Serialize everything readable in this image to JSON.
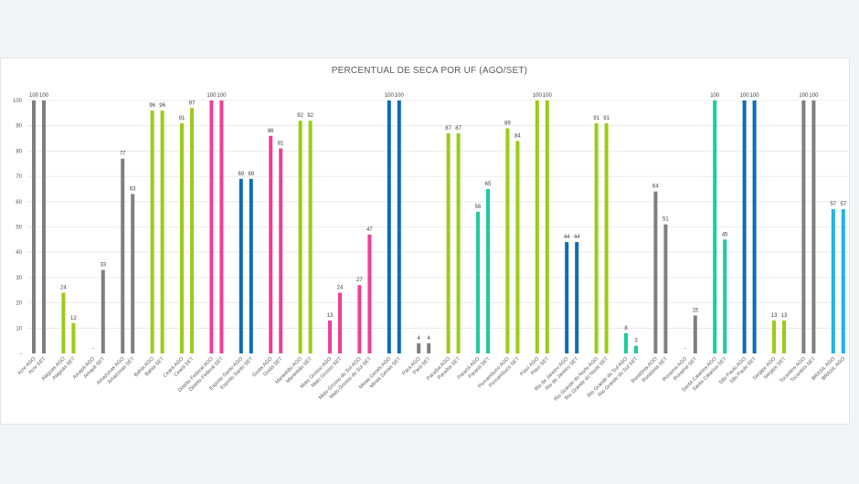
{
  "chart_data": {
    "type": "bar",
    "title": "PERCENTUAL DE SECA POR UF (AGO/SET)",
    "xlabel": "",
    "ylabel": "",
    "ylim": [
      0,
      100
    ],
    "yticks": [
      "-",
      "10",
      "20",
      "30",
      "40",
      "50",
      "60",
      "70",
      "80",
      "90",
      "100"
    ],
    "grid": true,
    "colors": {
      "gray": "#7f7f7f",
      "green": "#9ccb19",
      "pink": "#ee3f95",
      "blue": "#0f6cb6",
      "teal": "#1fcc9c",
      "lightblue": "#1fb3ea"
    },
    "groups": [
      {
        "color": "gray",
        "bars": [
          {
            "label": "Acre AGO",
            "value": 100
          },
          {
            "label": "Acre SET",
            "value": 100
          }
        ]
      },
      {
        "color": "green",
        "bars": [
          {
            "label": "Alagoas AGO",
            "value": 24
          },
          {
            "label": "Alagoas SET",
            "value": 12
          }
        ]
      },
      {
        "color": "gray",
        "bars": [
          {
            "label": "Amapá AGO",
            "value": 0,
            "text": "-"
          },
          {
            "label": "Amapá SET",
            "value": 33
          }
        ]
      },
      {
        "color": "gray",
        "bars": [
          {
            "label": "Amazonas AGO",
            "value": 77
          },
          {
            "label": "Amazonas SET",
            "value": 63
          }
        ]
      },
      {
        "color": "green",
        "bars": [
          {
            "label": "Bahia AGO",
            "value": 96
          },
          {
            "label": "Bahia SET",
            "value": 96
          }
        ]
      },
      {
        "color": "green",
        "bars": [
          {
            "label": "Ceará AGO",
            "value": 91
          },
          {
            "label": "Ceará SET",
            "value": 97
          }
        ]
      },
      {
        "color": "pink",
        "bars": [
          {
            "label": "Distrito Federal AGO",
            "value": 100
          },
          {
            "label": "Distrito Federal SET",
            "value": 100
          }
        ]
      },
      {
        "color": "blue",
        "bars": [
          {
            "label": "Espírito Santo AGO",
            "value": 69
          },
          {
            "label": "Espírito Santo SET",
            "value": 69
          }
        ]
      },
      {
        "color": "pink",
        "bars": [
          {
            "label": "Goiás AGO",
            "value": 86
          },
          {
            "label": "Goiás SET",
            "value": 81
          }
        ]
      },
      {
        "color": "green",
        "bars": [
          {
            "label": "Maranhão AGO",
            "value": 92
          },
          {
            "label": "Maranhão SET",
            "value": 92
          }
        ]
      },
      {
        "color": "pink",
        "bars": [
          {
            "label": "Mato Grosso AGO",
            "value": 13
          },
          {
            "label": "Mato Grosso SET",
            "value": 24
          }
        ]
      },
      {
        "color": "pink",
        "bars": [
          {
            "label": "Mato Grosso do Sul AGO",
            "value": 27
          },
          {
            "label": "Mato Grosso do Sul SET",
            "value": 47
          }
        ]
      },
      {
        "color": "blue",
        "bars": [
          {
            "label": "Minas Gerais AGO",
            "value": 100
          },
          {
            "label": "Minas Gerais SET",
            "value": 100
          }
        ]
      },
      {
        "color": "gray",
        "bars": [
          {
            "label": "Pará AGO",
            "value": 4
          },
          {
            "label": "Pará SET",
            "value": 4
          }
        ]
      },
      {
        "color": "green",
        "bars": [
          {
            "label": "Paraíba AGO",
            "value": 87
          },
          {
            "label": "Paraíba SET",
            "value": 87
          }
        ]
      },
      {
        "color": "teal",
        "bars": [
          {
            "label": "Paraná AGO",
            "value": 56
          },
          {
            "label": "Paraná SET",
            "value": 65
          }
        ]
      },
      {
        "color": "green",
        "bars": [
          {
            "label": "Pernambuco AGO",
            "value": 89
          },
          {
            "label": "Pernambuco SET",
            "value": 84
          }
        ]
      },
      {
        "color": "green",
        "bars": [
          {
            "label": "Piauí AGO",
            "value": 100
          },
          {
            "label": "Piauí SET",
            "value": 100
          }
        ]
      },
      {
        "color": "blue",
        "bars": [
          {
            "label": "Rio de Janeiro AGO",
            "value": 44
          },
          {
            "label": "Rio de Janeiro SET",
            "value": 44
          }
        ]
      },
      {
        "color": "green",
        "bars": [
          {
            "label": "Rio Grande do Norte AGO",
            "value": 91
          },
          {
            "label": "Rio Grande do Norte SET",
            "value": 91
          }
        ]
      },
      {
        "color": "teal",
        "bars": [
          {
            "label": "Rio Grande do Sul AGO",
            "value": 8
          },
          {
            "label": "Rio Grande do Sul SET",
            "value": 3
          }
        ]
      },
      {
        "color": "gray",
        "bars": [
          {
            "label": "Rondônia AGO",
            "value": 64
          },
          {
            "label": "Rondônia SET",
            "value": 51
          }
        ]
      },
      {
        "color": "gray",
        "bars": [
          {
            "label": "Roraima AGO",
            "value": 0,
            "text": "-"
          },
          {
            "label": "Roraima SET",
            "value": 15
          }
        ]
      },
      {
        "color": "teal",
        "bars": [
          {
            "label": "Santa Catarina AGO",
            "value": 100
          },
          {
            "label": "Santa Catarina SET",
            "value": 45
          }
        ]
      },
      {
        "color": "blue",
        "bars": [
          {
            "label": "São Paulo AGO",
            "value": 100
          },
          {
            "label": "São Paulo SET",
            "value": 100
          }
        ]
      },
      {
        "color": "green",
        "bars": [
          {
            "label": "Sergipe AGO",
            "value": 13
          },
          {
            "label": "Sergipe SET",
            "value": 13
          }
        ]
      },
      {
        "color": "gray",
        "bars": [
          {
            "label": "Tocantins AGO",
            "value": 100
          },
          {
            "label": "Tocantins SET",
            "value": 100
          }
        ]
      },
      {
        "color": "lightblue",
        "bars": [
          {
            "label": "BRASIL AGO",
            "value": 57
          },
          {
            "label": "BRASIL AGO",
            "value": 57
          }
        ]
      }
    ]
  }
}
